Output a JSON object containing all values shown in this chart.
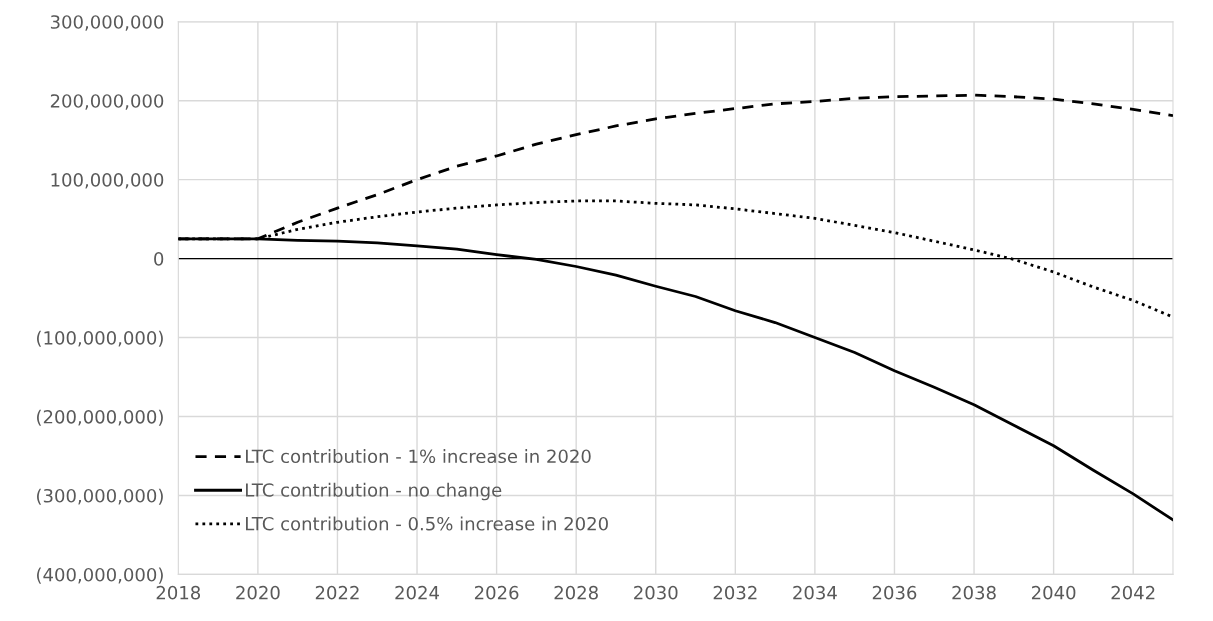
{
  "chart_data": {
    "type": "line",
    "x": [
      2018,
      2019,
      2020,
      2021,
      2022,
      2023,
      2024,
      2025,
      2026,
      2027,
      2028,
      2029,
      2030,
      2031,
      2032,
      2033,
      2034,
      2035,
      2036,
      2037,
      2038,
      2039,
      2040,
      2041,
      2042,
      2043
    ],
    "series": [
      {
        "name": "LTC contribution - 1% increase in 2020",
        "color": "#000000",
        "line_style": "dashed",
        "values": [
          25000000,
          25000000,
          25000000,
          46000000,
          64000000,
          81000000,
          100000000,
          117000000,
          130000000,
          145000000,
          157000000,
          168000000,
          177000000,
          184000000,
          190000000,
          196000000,
          199000000,
          203000000,
          205000000,
          206000000,
          207000000,
          205000000,
          202000000,
          196000000,
          189000000,
          181000000
        ]
      },
      {
        "name": "LTC contribution - no change",
        "color": "#000000",
        "line_style": "solid",
        "values": [
          25000000,
          25000000,
          25000000,
          23000000,
          22000000,
          20000000,
          16000000,
          12000000,
          5000000,
          -1000000,
          -10000000,
          -21000000,
          -35000000,
          -48000000,
          -66000000,
          -81000000,
          -100000000,
          -119000000,
          -142000000,
          -163000000,
          -185000000,
          -211000000,
          -237000000,
          -268000000,
          -298000000,
          -331000000
        ]
      },
      {
        "name": "LTC contribution - 0.5% increase in 2020",
        "color": "#000000",
        "line_style": "dotted",
        "values": [
          25000000,
          25000000,
          25000000,
          37000000,
          46000000,
          53000000,
          59000000,
          64000000,
          68000000,
          71000000,
          73000000,
          73000000,
          70000000,
          68000000,
          63000000,
          57000000,
          51000000,
          42000000,
          33000000,
          22000000,
          11000000,
          -1000000,
          -17000000,
          -36000000,
          -53000000,
          -74000000
        ]
      }
    ],
    "xlim": [
      2018,
      2043
    ],
    "xticks": [
      2018,
      2020,
      2022,
      2024,
      2026,
      2028,
      2030,
      2032,
      2034,
      2036,
      2038,
      2040,
      2042
    ],
    "ylim": [
      -400000000,
      300000000
    ],
    "yticks": [
      {
        "value": -400000000,
        "label": "(400,000,000)"
      },
      {
        "value": -300000000,
        "label": "(300,000,000)"
      },
      {
        "value": -200000000,
        "label": "(200,000,000)"
      },
      {
        "value": -100000000,
        "label": "(100,000,000)"
      },
      {
        "value": 0,
        "label": "0"
      },
      {
        "value": 100000000,
        "label": "100,000,000"
      },
      {
        "value": 200000000,
        "label": "200,000,000"
      },
      {
        "value": 300000000,
        "label": "300,000,000"
      }
    ],
    "ref_lines": [
      {
        "axis": "y",
        "value": 0,
        "color": "#000000"
      }
    ],
    "grid": true,
    "legend": "bottom left",
    "marker": "none"
  }
}
